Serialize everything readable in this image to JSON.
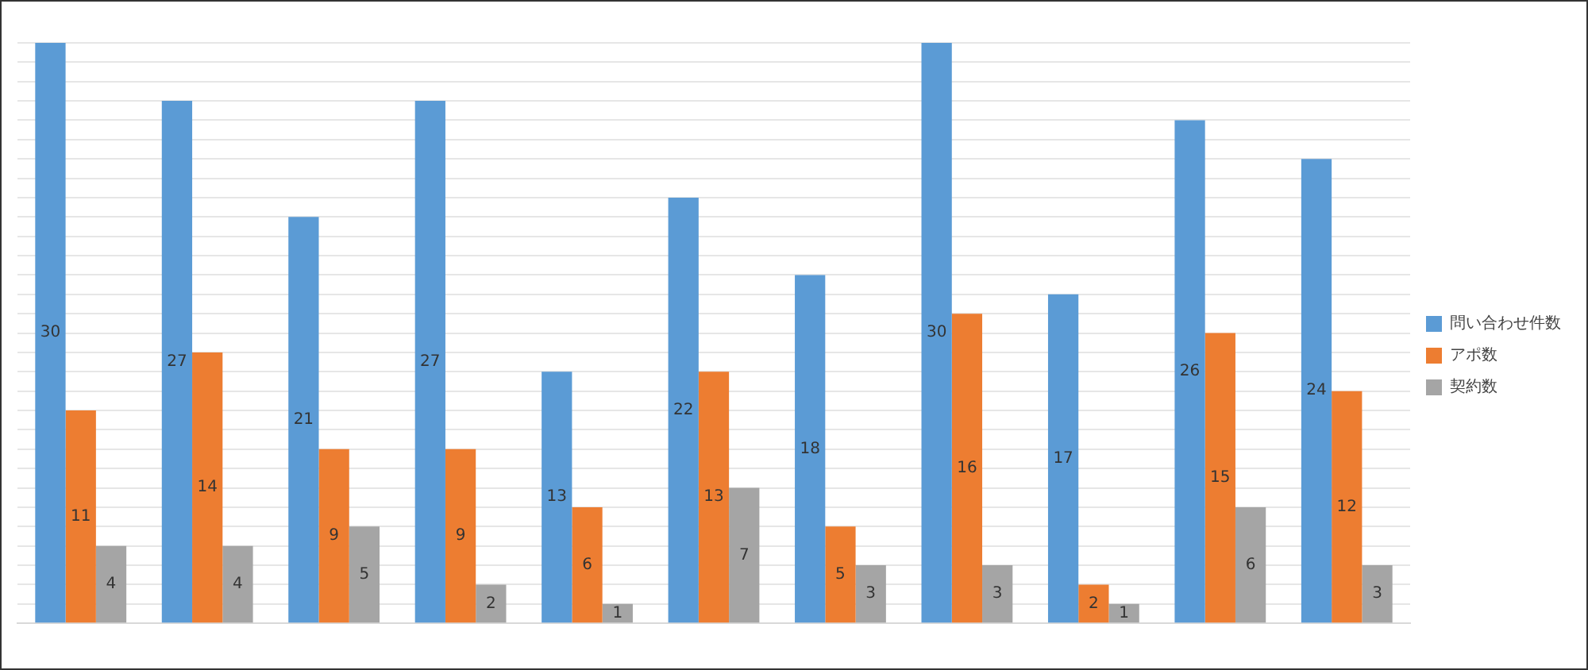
{
  "chart_data": {
    "type": "bar",
    "categories": [
      null,
      null,
      null,
      null,
      null,
      null,
      null,
      null,
      null,
      null,
      null
    ],
    "series": [
      {
        "name": "問い合わせ件数",
        "color": "#5b9bd5",
        "values": [
          30,
          27,
          21,
          27,
          13,
          22,
          18,
          30,
          17,
          26,
          24
        ]
      },
      {
        "name": "アポ数",
        "color": "#ed7d31",
        "values": [
          11,
          14,
          9,
          9,
          6,
          13,
          5,
          16,
          2,
          15,
          12
        ]
      },
      {
        "name": "契約数",
        "color": "#a5a5a5",
        "values": [
          4,
          4,
          5,
          2,
          1,
          7,
          3,
          3,
          1,
          6,
          3
        ]
      }
    ],
    "ylim": [
      0,
      30
    ],
    "yticks": [
      {
        "value": 0,
        "label": null
      },
      {
        "value": 1,
        "label": null
      },
      {
        "value": 2,
        "label": null
      },
      {
        "value": 3,
        "label": null
      },
      {
        "value": 4,
        "label": null
      },
      {
        "value": 5,
        "label": null
      },
      {
        "value": 6,
        "label": null
      },
      {
        "value": 7,
        "label": null
      },
      {
        "value": 8,
        "label": null
      },
      {
        "value": 9,
        "label": null
      },
      {
        "value": 10,
        "label": null
      },
      {
        "value": 11,
        "label": null
      },
      {
        "value": 12,
        "label": null
      },
      {
        "value": 13,
        "label": null
      },
      {
        "value": 14,
        "label": null
      },
      {
        "value": 15,
        "label": null
      },
      {
        "value": 16,
        "label": null
      },
      {
        "value": 17,
        "label": null
      },
      {
        "value": 18,
        "label": null
      },
      {
        "value": 19,
        "label": null
      },
      {
        "value": 20,
        "label": null
      },
      {
        "value": 21,
        "label": null
      },
      {
        "value": 22,
        "label": null
      },
      {
        "value": 23,
        "label": null
      },
      {
        "value": 24,
        "label": null
      },
      {
        "value": 25,
        "label": null
      },
      {
        "value": 26,
        "label": null
      },
      {
        "value": 27,
        "label": null
      },
      {
        "value": 28,
        "label": null
      },
      {
        "value": 29,
        "label": null
      },
      {
        "value": 30,
        "label": null
      }
    ],
    "grid": "y",
    "legend": "right",
    "data_labels": true
  }
}
